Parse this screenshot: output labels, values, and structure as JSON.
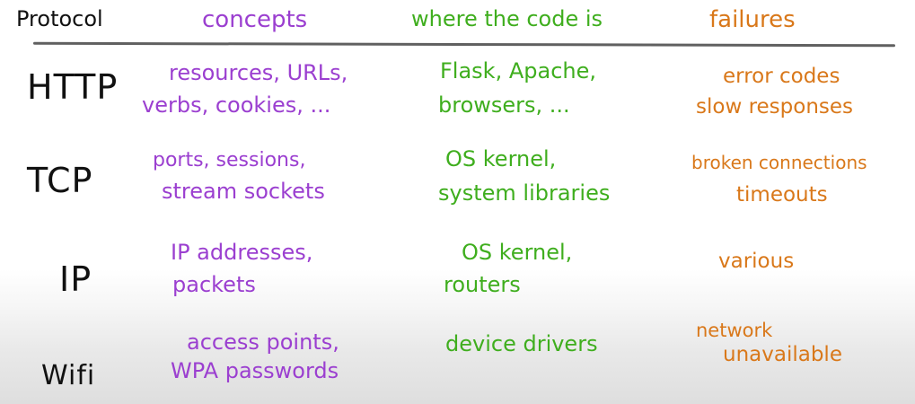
{
  "header": {
    "protocol": "Protocol",
    "concepts": "concepts",
    "code": "where the code is",
    "failures": "failures"
  },
  "rows": [
    {
      "protocol": "HTTP",
      "concepts": [
        "resources, URLs,",
        "verbs, cookies, ..."
      ],
      "code": [
        "Flask, Apache,",
        "browsers, ..."
      ],
      "failures": [
        "error codes",
        "slow responses"
      ]
    },
    {
      "protocol": "TCP",
      "concepts": [
        "ports, sessions,",
        "stream sockets"
      ],
      "code": [
        "OS kernel,",
        "system libraries"
      ],
      "failures": [
        "broken connections",
        "timeouts"
      ]
    },
    {
      "protocol": "IP",
      "concepts": [
        "IP addresses,",
        "packets"
      ],
      "code": [
        "OS kernel,",
        "routers"
      ],
      "failures": [
        "various"
      ]
    },
    {
      "protocol": "Wifi",
      "concepts": [
        "access points,",
        "WPA passwords"
      ],
      "code": [
        "device drivers"
      ],
      "failures": [
        "network",
        "unavailable"
      ]
    }
  ],
  "colors": {
    "protocol": "#111111",
    "concepts": "#9b3fd0",
    "code": "#3fae1e",
    "failures": "#d9781a",
    "rule": "#606060"
  }
}
